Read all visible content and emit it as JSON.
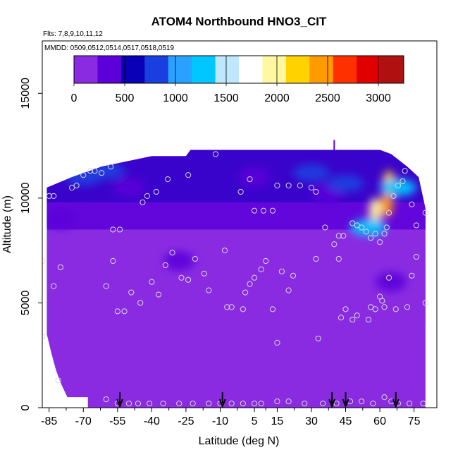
{
  "chart_data": {
    "type": "heatmap",
    "title": "ATOM4 Northbound HNO3_CIT",
    "subtitle_flights": "Flts: 7,8,9,10,11,12",
    "subtitle_mmdd": "MMDD: 0509,0512,0514,0517,0518,0519",
    "xlabel": "Latitude (deg N)",
    "ylabel": "Altitude (m)",
    "xlim": [
      -88,
      85
    ],
    "ylim": [
      0,
      17500
    ],
    "x_ticks": [
      -85,
      -70,
      -55,
      -40,
      -25,
      -10,
      5,
      15,
      30,
      45,
      60,
      75
    ],
    "x_tick_labels": [
      "-85",
      "-70",
      "-55",
      "-40",
      "-25",
      "-10",
      "5",
      "15",
      "30",
      "45",
      "60",
      "75"
    ],
    "y_ticks": [
      0,
      5000,
      10000,
      15000
    ],
    "y_tick_labels": [
      "0",
      "5000",
      "10000",
      "15000"
    ],
    "colorbar": {
      "min": 0,
      "max": 3250,
      "tick_values": [
        0,
        500,
        1000,
        1500,
        2000,
        2500,
        3000
      ],
      "tick_labels": [
        "0",
        "500",
        "1000",
        "1500",
        "2000",
        "2500",
        "3000"
      ],
      "colors": [
        "#8a2be2",
        "#5b00d9",
        "#0a00b8",
        "#1a3fe0",
        "#2aa0ff",
        "#00c8ff",
        "#bfe8ff",
        "#ffffff",
        "#fff8a0",
        "#ffd200",
        "#ff9a00",
        "#ff3000",
        "#e00000",
        "#b01010"
      ]
    },
    "profile_arrows_lat": [
      -54,
      -9,
      39,
      45,
      67
    ],
    "top_marker": {
      "lat": 40,
      "alt": 12500
    },
    "curtain_top": [
      {
        "lat": -86,
        "alt": 10500
      },
      {
        "lat": -75,
        "alt": 11000
      },
      {
        "lat": -62,
        "alt": 11500
      },
      {
        "lat": -40,
        "alt": 12000
      },
      {
        "lat": -25,
        "alt": 12000
      },
      {
        "lat": -23,
        "alt": 12300
      },
      {
        "lat": 60,
        "alt": 12300
      },
      {
        "lat": 65,
        "alt": 12100
      },
      {
        "lat": 72,
        "alt": 11500
      },
      {
        "lat": 77,
        "alt": 11000
      },
      {
        "lat": 80,
        "alt": 9500
      }
    ],
    "curtain_bottom_left": [
      {
        "lat": -86,
        "alt": 0
      },
      {
        "lat": -86,
        "alt": 3500
      },
      {
        "lat": -84,
        "alt": 2600
      },
      {
        "lat": -82,
        "alt": 1800
      },
      {
        "lat": -80,
        "alt": 1200
      },
      {
        "lat": -77,
        "alt": 500
      },
      {
        "lat": -68,
        "alt": 500
      },
      {
        "lat": -68,
        "alt": 0
      }
    ],
    "hot_regions": [
      {
        "lat": 63,
        "alt": 9700,
        "value": 2500
      },
      {
        "lat": 58,
        "alt": 9400,
        "value": 2000
      },
      {
        "lat": 64,
        "alt": 10700,
        "value": 2200
      },
      {
        "lat": 68,
        "alt": 10500,
        "value": 1200
      },
      {
        "lat": 55,
        "alt": 8600,
        "value": 1300
      },
      {
        "lat": 45,
        "alt": 10700,
        "value": 900
      },
      {
        "lat": 30,
        "alt": 11200,
        "value": 800
      },
      {
        "lat": -70,
        "alt": 11000,
        "value": 800
      },
      {
        "lat": -60,
        "alt": 11300,
        "value": 700
      }
    ],
    "cold_regions": [
      {
        "lat": -50,
        "alt": 10500,
        "value": 380
      },
      {
        "lat": -28,
        "alt": 7000,
        "value": 450
      },
      {
        "lat": 5,
        "alt": 11000,
        "value": 350
      },
      {
        "lat": 37,
        "alt": 10200,
        "value": 420
      },
      {
        "lat": -80,
        "alt": 9000,
        "value": 400
      },
      {
        "lat": 65,
        "alt": 6000,
        "value": 400
      }
    ],
    "observation_points": [
      {
        "lat": -85,
        "alt": 10100
      },
      {
        "lat": -83,
        "alt": 10100
      },
      {
        "lat": -75,
        "alt": 10500
      },
      {
        "lat": -73,
        "alt": 10600
      },
      {
        "lat": -70,
        "alt": 11100
      },
      {
        "lat": -67,
        "alt": 11300
      },
      {
        "lat": -65,
        "alt": 11300
      },
      {
        "lat": -62,
        "alt": 11200
      },
      {
        "lat": -58,
        "alt": 11500
      },
      {
        "lat": -44,
        "alt": 9800
      },
      {
        "lat": -42,
        "alt": 10100
      },
      {
        "lat": -38,
        "alt": 10300
      },
      {
        "lat": -33,
        "alt": 10900
      },
      {
        "lat": -24,
        "alt": 11100
      },
      {
        "lat": -12,
        "alt": 12100
      },
      {
        "lat": -1,
        "alt": 10300
      },
      {
        "lat": 3,
        "alt": 10900
      },
      {
        "lat": 5,
        "alt": 9400
      },
      {
        "lat": 9,
        "alt": 9400
      },
      {
        "lat": 13,
        "alt": 9400
      },
      {
        "lat": 15,
        "alt": 10600
      },
      {
        "lat": 20,
        "alt": 10600
      },
      {
        "lat": 25,
        "alt": 10600
      },
      {
        "lat": 30,
        "alt": 10500
      },
      {
        "lat": 32,
        "alt": 10300
      },
      {
        "lat": 36,
        "alt": 8600
      },
      {
        "lat": 40,
        "alt": 7800
      },
      {
        "lat": 42,
        "alt": 8200
      },
      {
        "lat": 44,
        "alt": 8200
      },
      {
        "lat": 48,
        "alt": 8800
      },
      {
        "lat": 50,
        "alt": 8700
      },
      {
        "lat": 52,
        "alt": 8600
      },
      {
        "lat": 54,
        "alt": 8400
      },
      {
        "lat": 56,
        "alt": 8100
      },
      {
        "lat": 58,
        "alt": 8300
      },
      {
        "lat": 60,
        "alt": 7900
      },
      {
        "lat": 62,
        "alt": 8300
      },
      {
        "lat": 63,
        "alt": 8600
      },
      {
        "lat": 64,
        "alt": 9300
      },
      {
        "lat": 66,
        "alt": 10100
      },
      {
        "lat": 68,
        "alt": 10600
      },
      {
        "lat": 70,
        "alt": 10800
      },
      {
        "lat": 71,
        "alt": 11300
      },
      {
        "lat": 74,
        "alt": 9700
      },
      {
        "lat": 76,
        "alt": 8700
      },
      {
        "lat": 80,
        "alt": 9300
      },
      {
        "lat": -88,
        "alt": 7000
      },
      {
        "lat": -80,
        "alt": 6700
      },
      {
        "lat": -83,
        "alt": 5800
      },
      {
        "lat": -57,
        "alt": 8500
      },
      {
        "lat": -54,
        "alt": 8500
      },
      {
        "lat": -57,
        "alt": 7000
      },
      {
        "lat": -60,
        "alt": 5800
      },
      {
        "lat": -55,
        "alt": 4600
      },
      {
        "lat": -52,
        "alt": 4600
      },
      {
        "lat": -49,
        "alt": 5500
      },
      {
        "lat": -45,
        "alt": 5000
      },
      {
        "lat": -40,
        "alt": 6000
      },
      {
        "lat": -37,
        "alt": 5400
      },
      {
        "lat": -34,
        "alt": 6800
      },
      {
        "lat": -31,
        "alt": 7400
      },
      {
        "lat": -27,
        "alt": 6200
      },
      {
        "lat": -24,
        "alt": 6100
      },
      {
        "lat": -21,
        "alt": 7100
      },
      {
        "lat": -17,
        "alt": 6400
      },
      {
        "lat": -15,
        "alt": 5600
      },
      {
        "lat": -8,
        "alt": 7500
      },
      {
        "lat": -7,
        "alt": 4800
      },
      {
        "lat": -5,
        "alt": 4800
      },
      {
        "lat": 0,
        "alt": 4700
      },
      {
        "lat": 1,
        "alt": 5500
      },
      {
        "lat": 3,
        "alt": 5900
      },
      {
        "lat": 5,
        "alt": 6200
      },
      {
        "lat": 8,
        "alt": 6600
      },
      {
        "lat": 10,
        "alt": 7000
      },
      {
        "lat": 13,
        "alt": 4700
      },
      {
        "lat": 15,
        "alt": 3100
      },
      {
        "lat": 17,
        "alt": 6500
      },
      {
        "lat": 20,
        "alt": 5600
      },
      {
        "lat": 22,
        "alt": 6300
      },
      {
        "lat": 32,
        "alt": 7100
      },
      {
        "lat": 33,
        "alt": 3300
      },
      {
        "lat": 42,
        "alt": 7100
      },
      {
        "lat": 43,
        "alt": 4300
      },
      {
        "lat": 45,
        "alt": 4700
      },
      {
        "lat": 48,
        "alt": 4200
      },
      {
        "lat": 50,
        "alt": 4400
      },
      {
        "lat": 55,
        "alt": 4200
      },
      {
        "lat": 56,
        "alt": 4800
      },
      {
        "lat": 58,
        "alt": 4700
      },
      {
        "lat": 60,
        "alt": 5300
      },
      {
        "lat": 61,
        "alt": 5100
      },
      {
        "lat": 62,
        "alt": 4800
      },
      {
        "lat": 64,
        "alt": 6200
      },
      {
        "lat": 67,
        "alt": 4700
      },
      {
        "lat": 72,
        "alt": 4800
      },
      {
        "lat": 74,
        "alt": 6300
      },
      {
        "lat": 76,
        "alt": 7200
      },
      {
        "lat": 80,
        "alt": 5000
      },
      {
        "lat": -88,
        "alt": 3400
      },
      {
        "lat": -81,
        "alt": 1300
      },
      {
        "lat": -60,
        "alt": 400
      },
      {
        "lat": -55,
        "alt": 200
      },
      {
        "lat": -50,
        "alt": 200
      },
      {
        "lat": -46,
        "alt": 200
      },
      {
        "lat": -41,
        "alt": 200
      },
      {
        "lat": -35,
        "alt": 200
      },
      {
        "lat": -28,
        "alt": 200
      },
      {
        "lat": -22,
        "alt": 200
      },
      {
        "lat": -15,
        "alt": 200
      },
      {
        "lat": -10,
        "alt": 200
      },
      {
        "lat": -5,
        "alt": 200
      },
      {
        "lat": 0,
        "alt": 200
      },
      {
        "lat": 5,
        "alt": 200
      },
      {
        "lat": 8,
        "alt": 200
      },
      {
        "lat": 15,
        "alt": 300
      },
      {
        "lat": 20,
        "alt": 300
      },
      {
        "lat": 27,
        "alt": 200
      },
      {
        "lat": 35,
        "alt": 200
      },
      {
        "lat": 41,
        "alt": 200
      },
      {
        "lat": 47,
        "alt": 300
      },
      {
        "lat": 52,
        "alt": 300
      },
      {
        "lat": 57,
        "alt": 200
      },
      {
        "lat": 62,
        "alt": 500
      },
      {
        "lat": 65,
        "alt": 300
      },
      {
        "lat": 68,
        "alt": 200
      },
      {
        "lat": 73,
        "alt": 200
      },
      {
        "lat": 79,
        "alt": 200
      }
    ]
  }
}
